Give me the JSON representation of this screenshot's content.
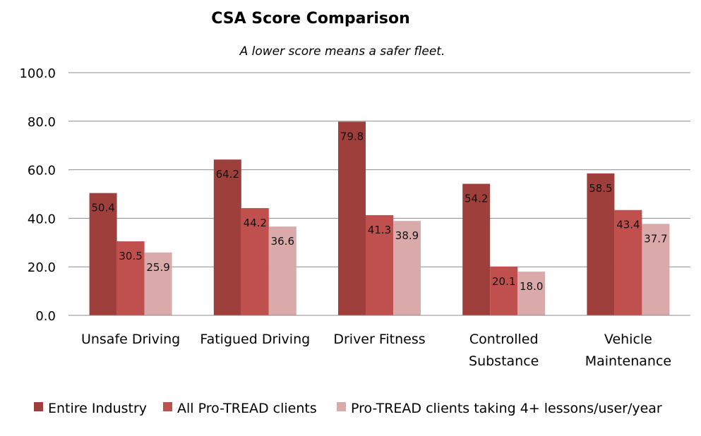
{
  "chart_data": {
    "type": "bar",
    "title": "CSA Score Comparison",
    "subtitle": "A lower score means a safer fleet.",
    "categories": [
      [
        "Unsafe Driving"
      ],
      [
        "Fatigued Driving"
      ],
      [
        "Driver Fitness"
      ],
      [
        "Controlled",
        "Substance"
      ],
      [
        "Vehicle",
        "Maintenance"
      ]
    ],
    "series": [
      {
        "name": "Entire Industry",
        "color": "#9e3f3c",
        "values": [
          50.4,
          64.2,
          79.8,
          54.2,
          58.5
        ]
      },
      {
        "name": "All Pro-TREAD clients",
        "color": "#c0504d",
        "values": [
          30.5,
          44.2,
          41.3,
          20.1,
          43.4
        ]
      },
      {
        "name": "Pro-TREAD clients taking 4+ lessons/user/year",
        "color": "#d9aaa9",
        "values": [
          25.9,
          36.6,
          38.9,
          18.0,
          37.7
        ]
      }
    ],
    "ylim": [
      0,
      100
    ],
    "yticks": [
      "0.0",
      "20.0",
      "40.0",
      "60.0",
      "80.0",
      "100.0"
    ],
    "grid": true,
    "legend_position": "bottom",
    "xlabel": "",
    "ylabel": ""
  }
}
